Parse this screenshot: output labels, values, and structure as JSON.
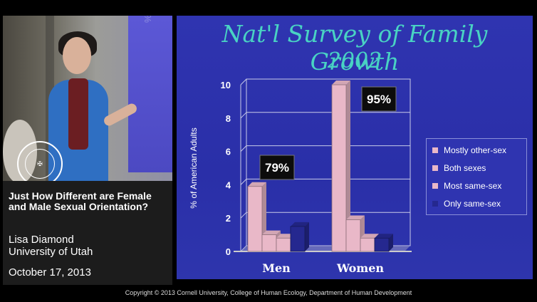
{
  "video": {
    "screen_label": "% of American Adu",
    "seal_text": "CORNELL\nUNIVERSITY"
  },
  "caption": {
    "title": "Just How Different are Female and Male Sexual Orientation?",
    "speaker": "Lisa Diamond",
    "affiliation": "University of Utah",
    "date": "October 17, 2013"
  },
  "slide": {
    "title_line1": "Nat'l Survey of Family Growth",
    "title_line2": "2002"
  },
  "chart_data": {
    "type": "bar",
    "categories": [
      "Men",
      "Women"
    ],
    "ylabel": "% of American Adults",
    "ylim": [
      0,
      10
    ],
    "yticks": [
      0,
      2,
      4,
      6,
      8,
      10
    ],
    "series": [
      {
        "name": "Mostly other-sex",
        "values": [
          3.9,
          10.0
        ],
        "color": "#e9b8c8"
      },
      {
        "name": "Both sexes",
        "values": [
          1.0,
          1.9
        ],
        "color": "#e9b8c8"
      },
      {
        "name": "Most same-sex",
        "values": [
          0.8,
          0.8
        ],
        "color": "#e9b8c8"
      },
      {
        "name": "Only same-sex",
        "values": [
          1.5,
          0.8
        ],
        "color": "#25288f"
      }
    ],
    "annotations": [
      "79%",
      "95%"
    ],
    "grid": true,
    "legend_position": "right"
  },
  "footer": {
    "copyright": "Copyright © 2013 Cornell University, College of Human Ecology, Department of Human Development"
  }
}
